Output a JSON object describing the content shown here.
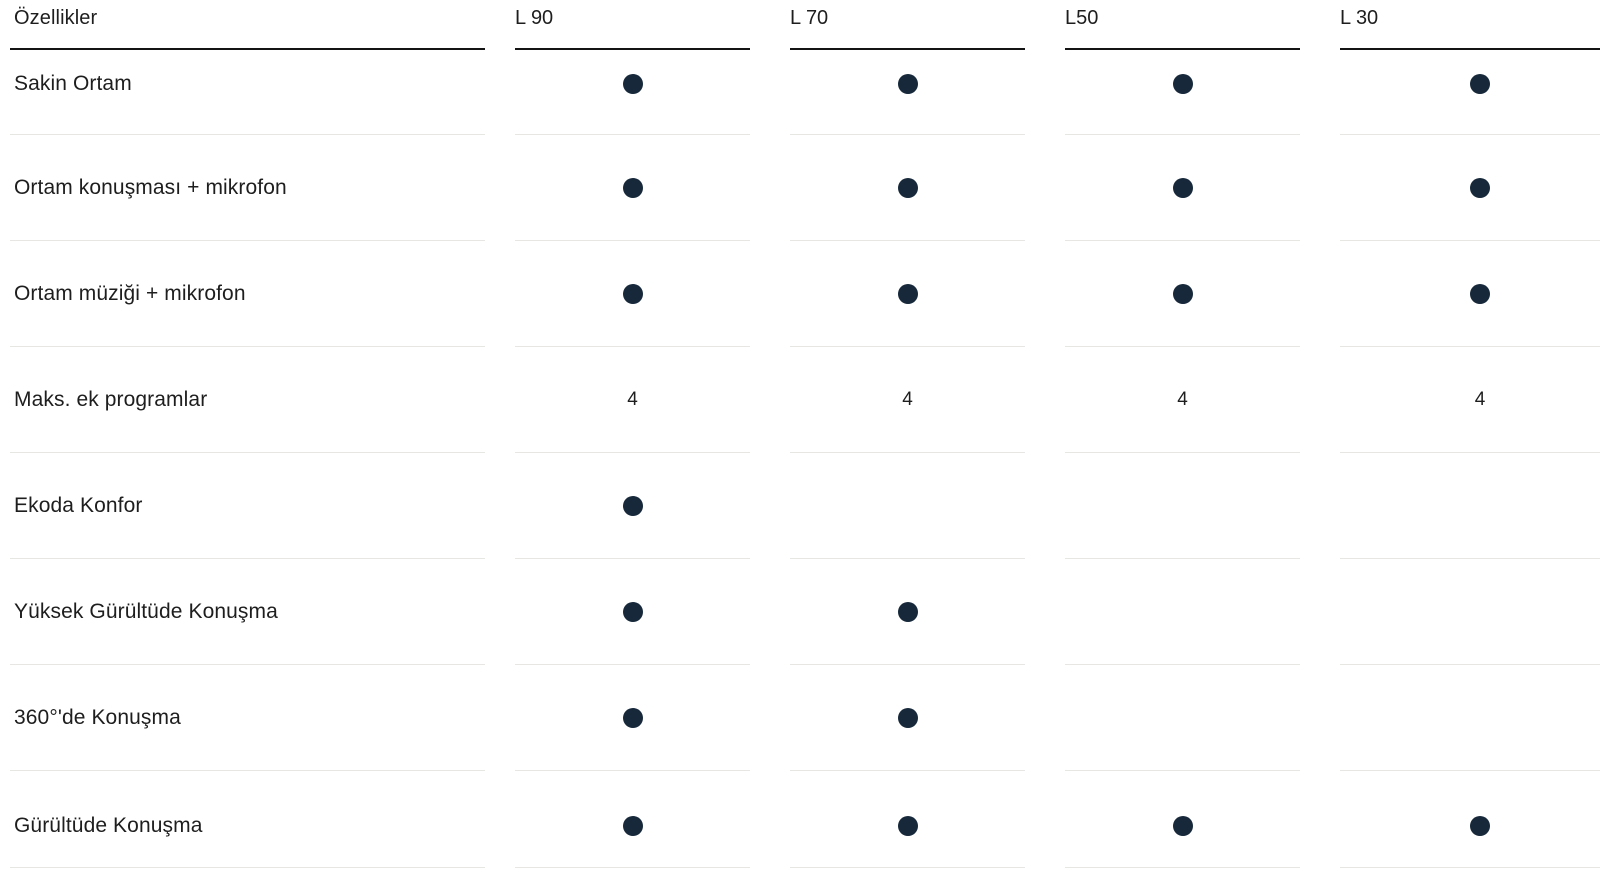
{
  "table": {
    "feature_header": "Özellikler",
    "columns": [
      "L 90",
      "L 70",
      "L50",
      "L 30"
    ],
    "rows": [
      {
        "label": "Sakin Ortam",
        "values": [
          "dot",
          "dot",
          "dot",
          "dot"
        ]
      },
      {
        "label": "Ortam konuşması + mikrofon",
        "values": [
          "dot",
          "dot",
          "dot",
          "dot"
        ]
      },
      {
        "label": "Ortam müziği + mikrofon",
        "values": [
          "dot",
          "dot",
          "dot",
          "dot"
        ]
      },
      {
        "label": "Maks. ek programlar",
        "values": [
          "4",
          "4",
          "4",
          "4"
        ]
      },
      {
        "label": "Ekoda Konfor",
        "values": [
          "dot",
          "",
          "",
          ""
        ]
      },
      {
        "label": "Yüksek Gürültüde Konuşma",
        "values": [
          "dot",
          "dot",
          "",
          ""
        ]
      },
      {
        "label": "360°'de Konuşma",
        "values": [
          "dot",
          "dot",
          "",
          ""
        ]
      },
      {
        "label": "Gürültüde Konuşma",
        "values": [
          "dot",
          "dot",
          "dot",
          "dot"
        ]
      }
    ],
    "colors": {
      "dot": "#16283a",
      "text": "#1e1e1e",
      "header_line": "#141414",
      "row_line": "#e8e6e3"
    }
  }
}
